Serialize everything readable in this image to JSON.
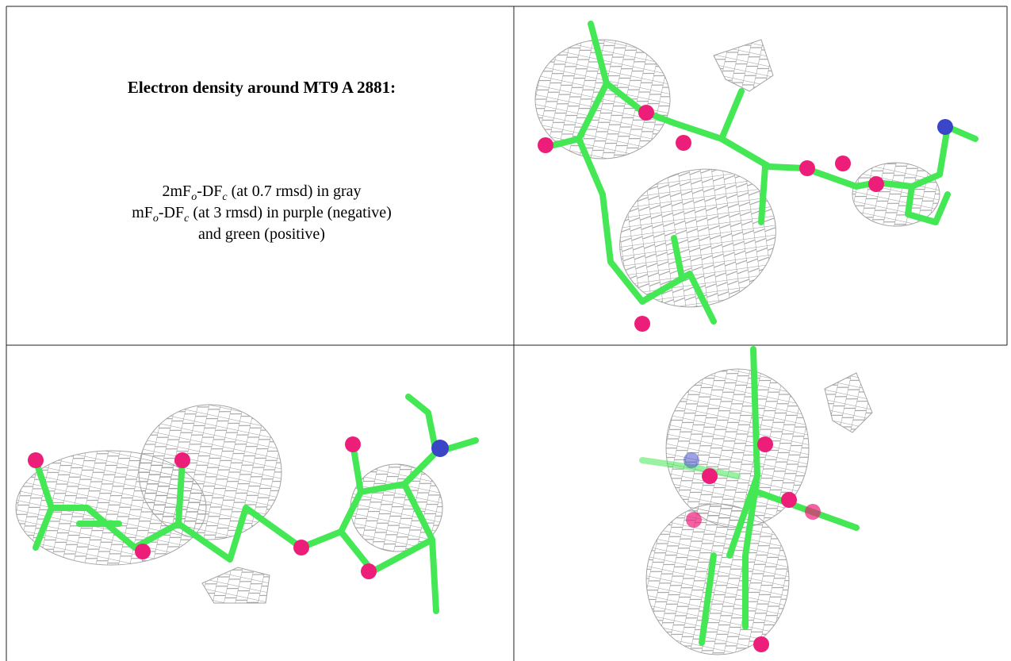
{
  "header": {
    "title": "Electron density around MT9 A 2881:"
  },
  "caption": {
    "lines": [
      {
        "parts": [
          "2mF",
          "o",
          "-DF",
          "c",
          " (at 0.7 rmsd) in gray"
        ]
      },
      {
        "parts": [
          "mF",
          "o",
          "-DF",
          "c",
          " (at 3 rmsd) in purple (negative)"
        ]
      },
      {
        "parts": [
          "and green (positive)"
        ]
      }
    ]
  }
}
